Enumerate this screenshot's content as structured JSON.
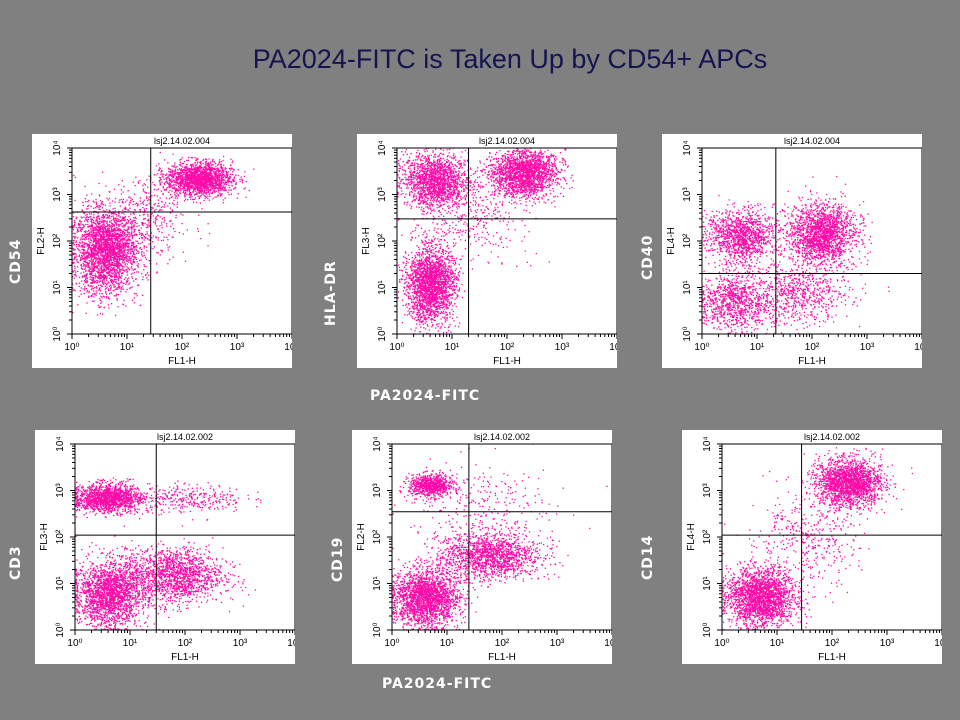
{
  "slide": {
    "title": "PA2024-FITC is Taken Up by CD54+ APCs",
    "x_common_top": "PA2024-FITC",
    "x_common_bottom": "PA2024-FITC"
  },
  "colors": {
    "background": "#808080",
    "dots": "#ff0aa8",
    "panel": "#ffffff",
    "title": "#141450"
  },
  "chart_data": [
    {
      "type": "scatter",
      "file": "lsj2.14.02.004",
      "side_label": "CD54",
      "xlabel": "FL1-H",
      "ylabel": "FL2-H",
      "xscale": "log",
      "yscale": "log",
      "xlim": [
        1,
        10000
      ],
      "ylim": [
        1,
        10000
      ],
      "xticks": [
        "10⁰",
        "10¹",
        "10²",
        "10³",
        "10⁴"
      ],
      "yticks": [
        "10⁰",
        "10¹",
        "10²",
        "10³",
        "10⁴"
      ],
      "quadrant": {
        "x": 27,
        "y": 420
      },
      "populations": [
        {
          "cx": 4,
          "cy": 60,
          "sx": 0.28,
          "sy": 0.45,
          "n": 2600
        },
        {
          "cx": 200,
          "cy": 2200,
          "sx": 0.3,
          "sy": 0.18,
          "n": 1800
        },
        {
          "cx": 20,
          "cy": 300,
          "sx": 0.4,
          "sy": 0.45,
          "n": 400
        }
      ]
    },
    {
      "type": "scatter",
      "file": "lsj2.14.02.004",
      "side_label": "HLA-DR",
      "xlabel": "FL1-H",
      "ylabel": "FL3-H",
      "xscale": "log",
      "yscale": "log",
      "xlim": [
        1,
        10000
      ],
      "ylim": [
        1,
        10000
      ],
      "xticks": [
        "10⁰",
        "10¹",
        "10²",
        "10³",
        "10⁴"
      ],
      "yticks": [
        "10⁰",
        "10¹",
        "10²",
        "10³",
        "10⁴"
      ],
      "quadrant": {
        "x": 20,
        "y": 300
      },
      "populations": [
        {
          "cx": 4,
          "cy": 12,
          "sx": 0.22,
          "sy": 0.4,
          "n": 2200
        },
        {
          "cx": 5,
          "cy": 2000,
          "sx": 0.3,
          "sy": 0.3,
          "n": 1600
        },
        {
          "cx": 200,
          "cy": 3000,
          "sx": 0.3,
          "sy": 0.25,
          "n": 2000
        },
        {
          "cx": 25,
          "cy": 400,
          "sx": 0.5,
          "sy": 0.5,
          "n": 350
        }
      ]
    },
    {
      "type": "scatter",
      "file": "lsj2.14.02.004",
      "side_label": "CD40",
      "xlabel": "FL1-H",
      "ylabel": "FL4-H",
      "xscale": "log",
      "yscale": "log",
      "xlim": [
        1,
        10000
      ],
      "ylim": [
        1,
        10000
      ],
      "xticks": [
        "10⁰",
        "10¹",
        "10²",
        "10³",
        "10⁴"
      ],
      "yticks": [
        "10⁰",
        "10¹",
        "10²",
        "10³",
        "10⁴"
      ],
      "quadrant": {
        "x": 22,
        "y": 20
      },
      "populations": [
        {
          "cx": 5,
          "cy": 130,
          "sx": 0.3,
          "sy": 0.28,
          "n": 1200
        },
        {
          "cx": 150,
          "cy": 150,
          "sx": 0.3,
          "sy": 0.32,
          "n": 1800
        },
        {
          "cx": 4,
          "cy": 5,
          "sx": 0.3,
          "sy": 0.3,
          "n": 900
        },
        {
          "cx": 60,
          "cy": 8,
          "sx": 0.45,
          "sy": 0.35,
          "n": 700
        }
      ]
    },
    {
      "type": "scatter",
      "file": "lsj2.14.02.002",
      "side_label": "CD3",
      "xlabel": "FL1-H",
      "ylabel": "FL3-H",
      "xscale": "log",
      "yscale": "log",
      "xlim": [
        1,
        10000
      ],
      "ylim": [
        1,
        10000
      ],
      "xticks": [
        "10⁰",
        "10¹",
        "10²",
        "10³",
        "10⁴"
      ],
      "yticks": [
        "10⁰",
        "10¹",
        "10²",
        "10³",
        "10⁴"
      ],
      "quadrant": {
        "x": 30,
        "y": 110
      },
      "populations": [
        {
          "cx": 4,
          "cy": 700,
          "sx": 0.3,
          "sy": 0.15,
          "n": 1500
        },
        {
          "cx": 4,
          "cy": 6,
          "sx": 0.3,
          "sy": 0.35,
          "n": 2000
        },
        {
          "cx": 60,
          "cy": 15,
          "sx": 0.45,
          "sy": 0.3,
          "n": 1600
        },
        {
          "cx": 120,
          "cy": 700,
          "sx": 0.5,
          "sy": 0.15,
          "n": 300
        }
      ]
    },
    {
      "type": "scatter",
      "file": "lsj2.14.02.002",
      "side_label": "CD19",
      "xlabel": "FL1-H",
      "ylabel": "FL2-H",
      "xscale": "log",
      "yscale": "log",
      "xlim": [
        1,
        10000
      ],
      "ylim": [
        1,
        10000
      ],
      "xticks": [
        "10⁰",
        "10¹",
        "10²",
        "10³",
        "10⁴"
      ],
      "yticks": [
        "10⁰",
        "10¹",
        "10²",
        "10³",
        "10⁴"
      ],
      "quadrant": {
        "x": 25,
        "y": 350
      },
      "populations": [
        {
          "cx": 5,
          "cy": 1300,
          "sx": 0.2,
          "sy": 0.12,
          "n": 800
        },
        {
          "cx": 4,
          "cy": 5,
          "sx": 0.3,
          "sy": 0.3,
          "n": 2200
        },
        {
          "cx": 60,
          "cy": 40,
          "sx": 0.45,
          "sy": 0.25,
          "n": 1500
        },
        {
          "cx": 40,
          "cy": 500,
          "sx": 0.6,
          "sy": 0.5,
          "n": 250
        }
      ]
    },
    {
      "type": "scatter",
      "file": "lsj2.14.02.002",
      "side_label": "CD14",
      "xlabel": "FL1-H",
      "ylabel": "FL4-H",
      "xscale": "log",
      "yscale": "log",
      "xlim": [
        1,
        10000
      ],
      "ylim": [
        1,
        10000
      ],
      "xticks": [
        "10⁰",
        "10¹",
        "10²",
        "10³",
        "10⁴"
      ],
      "yticks": [
        "10⁰",
        "10¹",
        "10²",
        "10³",
        "10⁴"
      ],
      "quadrant": {
        "x": 28,
        "y": 110
      },
      "populations": [
        {
          "cx": 5,
          "cy": 5,
          "sx": 0.3,
          "sy": 0.3,
          "n": 2200
        },
        {
          "cx": 200,
          "cy": 1500,
          "sx": 0.3,
          "sy": 0.25,
          "n": 2000
        },
        {
          "cx": 30,
          "cy": 80,
          "sx": 0.5,
          "sy": 0.5,
          "n": 400
        }
      ]
    }
  ]
}
